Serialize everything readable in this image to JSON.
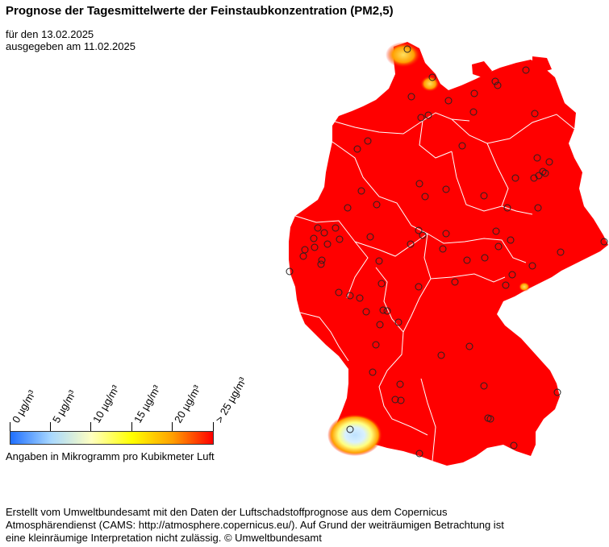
{
  "header": {
    "title": "Prognose der Tagesmittelwerte der Feinstaubkonzentration (PM2,5)",
    "forecast_date": "für den 13.02.2025",
    "issued_date": "ausgegeben am 11.02.2025"
  },
  "legend": {
    "ticks": [
      "0  µg/m³",
      "5  µg/m³",
      "10  µg/m³",
      "15  µg/m³",
      "20  µg/m³",
      "> 25  µg/m³"
    ],
    "colors": [
      "#1f6fff",
      "#a8d8ff",
      "#ffffc0",
      "#ffff00",
      "#ffa000",
      "#ff0000"
    ],
    "unit_note": "Angaben in Mikrogramm pro Kubikmeter Luft"
  },
  "map": {
    "fill_color": "#ff0000",
    "border_color": "#ffffff"
  },
  "footer": {
    "credit": "Erstellt vom Umweltbundesamt mit den Daten der Luftschadstoffprognose aus dem Copernicus Atmosphärendienst (CAMS: http://atmosphere.copernicus.eu/). Auf Grund der weiträumigen Betrachtung ist eine kleinräumige Interpretation nicht zulässig. © Umweltbundesamt"
  }
}
